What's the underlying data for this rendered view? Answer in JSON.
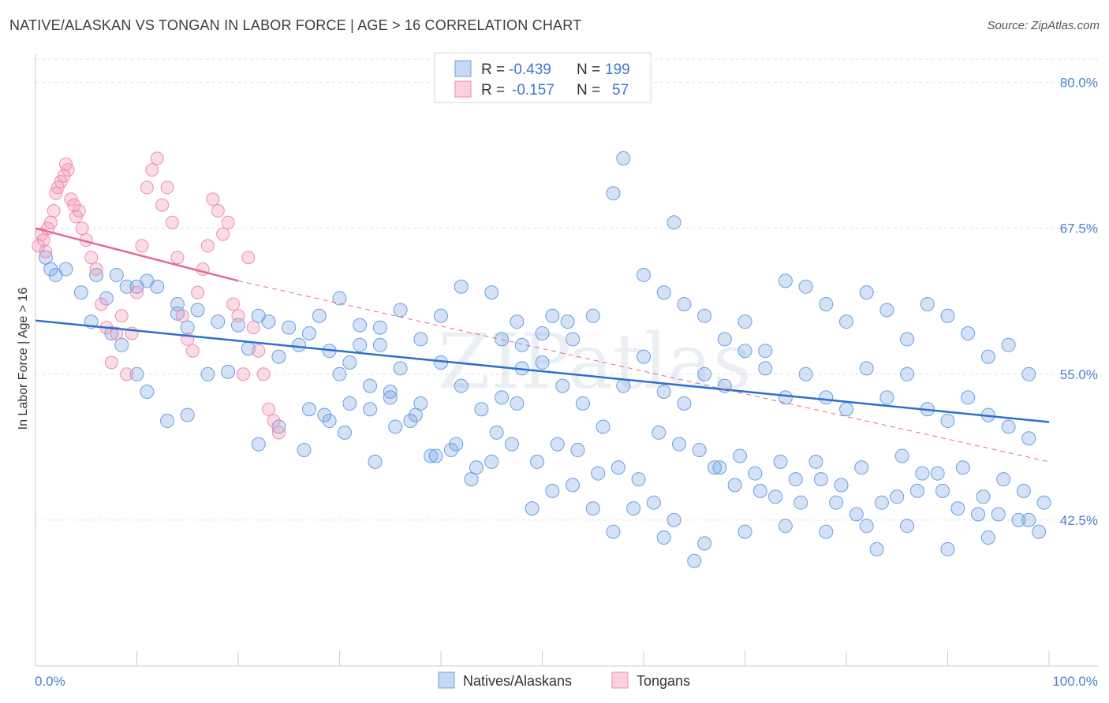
{
  "title": "NATIVE/ALASKAN VS TONGAN IN LABOR FORCE | AGE > 16 CORRELATION CHART",
  "source": "Source: ZipAtlas.com",
  "watermark": "ZIPatlas",
  "chart_data": {
    "type": "scatter",
    "ylabel": "In Labor Force | Age > 16",
    "xlim": [
      0,
      100
    ],
    "ylim": [
      30,
      82
    ],
    "x_tick_labels": [
      "0.0%",
      "100.0%"
    ],
    "y_ticks": [
      42.5,
      55.0,
      67.5,
      80.0
    ],
    "y_tick_labels": [
      "42.5%",
      "55.0%",
      "67.5%",
      "80.0%"
    ],
    "grid": true,
    "colors": {
      "natives": "#6d9fe0",
      "tongans": "#f08cb0",
      "natives_line": "#2c6fd1",
      "tongans_line": "#e56a93"
    },
    "legend": {
      "rows": [
        {
          "r_label": "R =",
          "r_value": "-0.439",
          "n_label": "N =",
          "n_value": "199"
        },
        {
          "r_label": "R =",
          "r_value": "-0.157",
          "n_label": "N =",
          "n_value": "57"
        }
      ],
      "bottom": [
        "Natives/Alaskans",
        "Tongans"
      ]
    },
    "series": [
      {
        "name": "Natives/Alaskans",
        "trend": {
          "x": [
            0,
            100
          ],
          "y": [
            59.6,
            50.9
          ]
        },
        "points": [
          [
            1,
            65
          ],
          [
            1.5,
            64
          ],
          [
            3,
            64
          ],
          [
            2,
            63.5
          ],
          [
            4.5,
            62
          ],
          [
            6,
            63.5
          ],
          [
            8,
            63.5
          ],
          [
            10,
            62.5
          ],
          [
            7,
            61.5
          ],
          [
            9,
            62.5
          ],
          [
            11,
            63
          ],
          [
            12,
            62.5
          ],
          [
            14,
            61
          ],
          [
            16,
            60.5
          ],
          [
            14,
            60.2
          ],
          [
            15,
            59
          ],
          [
            18,
            59.5
          ],
          [
            20,
            59.2
          ],
          [
            22,
            60
          ],
          [
            23,
            59.5
          ],
          [
            25,
            59
          ],
          [
            27,
            58.5
          ],
          [
            29,
            57
          ],
          [
            32,
            59.2
          ],
          [
            34,
            57.5
          ],
          [
            31,
            56
          ],
          [
            30,
            55
          ],
          [
            33,
            54
          ],
          [
            35,
            53.5
          ],
          [
            38,
            52.5
          ],
          [
            36,
            55.5
          ],
          [
            40,
            56
          ],
          [
            42,
            54
          ],
          [
            44,
            52
          ],
          [
            46,
            53
          ],
          [
            48,
            55.5
          ],
          [
            50,
            56
          ],
          [
            52,
            54
          ],
          [
            54,
            52.5
          ],
          [
            56,
            50.5
          ],
          [
            58,
            54
          ],
          [
            60,
            56.5
          ],
          [
            62,
            53.5
          ],
          [
            64,
            52.5
          ],
          [
            66,
            55
          ],
          [
            68,
            54
          ],
          [
            70,
            57
          ],
          [
            72,
            55.5
          ],
          [
            74,
            53
          ],
          [
            76,
            55
          ],
          [
            78,
            53
          ],
          [
            80,
            52
          ],
          [
            82,
            55.5
          ],
          [
            84,
            53
          ],
          [
            86,
            55
          ],
          [
            88,
            52
          ],
          [
            90,
            51
          ],
          [
            92,
            53
          ],
          [
            94,
            51.5
          ],
          [
            96,
            50.5
          ],
          [
            98,
            49.5
          ],
          [
            26,
            57.5
          ],
          [
            24,
            56.5
          ],
          [
            21,
            57.2
          ],
          [
            19,
            55.2
          ],
          [
            17,
            55
          ],
          [
            15,
            51.5
          ],
          [
            13,
            51
          ],
          [
            11,
            53.5
          ],
          [
            10,
            55
          ],
          [
            8.5,
            57.5
          ],
          [
            7.5,
            58.5
          ],
          [
            5.5,
            59.5
          ],
          [
            26.5,
            48.5
          ],
          [
            28.5,
            51.5
          ],
          [
            30.5,
            50
          ],
          [
            33.5,
            47.5
          ],
          [
            35.5,
            50.5
          ],
          [
            37.5,
            51.5
          ],
          [
            39.5,
            48
          ],
          [
            41.5,
            49
          ],
          [
            43.5,
            47
          ],
          [
            45.5,
            50
          ],
          [
            47.5,
            52.5
          ],
          [
            49.5,
            47.5
          ],
          [
            51.5,
            49
          ],
          [
            53.5,
            48.5
          ],
          [
            55.5,
            46.5
          ],
          [
            57.5,
            47
          ],
          [
            59.5,
            46
          ],
          [
            61.5,
            50
          ],
          [
            63.5,
            49
          ],
          [
            65.5,
            48.5
          ],
          [
            67.5,
            47
          ],
          [
            69.5,
            48
          ],
          [
            71.5,
            45
          ],
          [
            73.5,
            47.5
          ],
          [
            75.5,
            44
          ],
          [
            77.5,
            46
          ],
          [
            79.5,
            45.5
          ],
          [
            81.5,
            47
          ],
          [
            83.5,
            44
          ],
          [
            85.5,
            48
          ],
          [
            87.5,
            46.5
          ],
          [
            89.5,
            45
          ],
          [
            91.5,
            47
          ],
          [
            93.5,
            44.5
          ],
          [
            95.5,
            46
          ],
          [
            97.5,
            45
          ],
          [
            99.5,
            44
          ],
          [
            60,
            63.5
          ],
          [
            62,
            62
          ],
          [
            64,
            61
          ],
          [
            66,
            60
          ],
          [
            68,
            58
          ],
          [
            70,
            59.5
          ],
          [
            72,
            57
          ],
          [
            74,
            63
          ],
          [
            76,
            62.5
          ],
          [
            78,
            61
          ],
          [
            80,
            59.5
          ],
          [
            82,
            62
          ],
          [
            84,
            60.5
          ],
          [
            86,
            58
          ],
          [
            88,
            61
          ],
          [
            90,
            60
          ],
          [
            92,
            58.5
          ],
          [
            94,
            56.5
          ],
          [
            96,
            57.5
          ],
          [
            98,
            55
          ],
          [
            57,
            70.5
          ],
          [
            58,
            73.5
          ],
          [
            63,
            68
          ],
          [
            55,
            60
          ],
          [
            52.5,
            59.5
          ],
          [
            50,
            58.5
          ],
          [
            47.5,
            59.5
          ],
          [
            45,
            62
          ],
          [
            42,
            62.5
          ],
          [
            40,
            60
          ],
          [
            38,
            58
          ],
          [
            36,
            60.5
          ],
          [
            34,
            59
          ],
          [
            32,
            57.5
          ],
          [
            30,
            61.5
          ],
          [
            28,
            60
          ],
          [
            46,
            58
          ],
          [
            48,
            57.5
          ],
          [
            51,
            60
          ],
          [
            53,
            58
          ],
          [
            22,
            49
          ],
          [
            24,
            50.5
          ],
          [
            27,
            52
          ],
          [
            29,
            51
          ],
          [
            31,
            52.5
          ],
          [
            33,
            52
          ],
          [
            35,
            53
          ],
          [
            37,
            51
          ],
          [
            39,
            48
          ],
          [
            41,
            48.5
          ],
          [
            43,
            46
          ],
          [
            45,
            47.5
          ],
          [
            47,
            49
          ],
          [
            49,
            43.5
          ],
          [
            51,
            45
          ],
          [
            53,
            45.5
          ],
          [
            55,
            43.5
          ],
          [
            57,
            41.5
          ],
          [
            59,
            43.5
          ],
          [
            61,
            44
          ],
          [
            63,
            42.5
          ],
          [
            65,
            39
          ],
          [
            67,
            47
          ],
          [
            69,
            45.5
          ],
          [
            71,
            46.5
          ],
          [
            73,
            44.5
          ],
          [
            75,
            46
          ],
          [
            77,
            47.5
          ],
          [
            79,
            44
          ],
          [
            81,
            43
          ],
          [
            83,
            40
          ],
          [
            85,
            44.5
          ],
          [
            87,
            45
          ],
          [
            89,
            46.5
          ],
          [
            91,
            43.5
          ],
          [
            93,
            43
          ],
          [
            95,
            43
          ],
          [
            97,
            42.5
          ],
          [
            99,
            41.5
          ],
          [
            62,
            41
          ],
          [
            66,
            40.5
          ],
          [
            70,
            41.5
          ],
          [
            74,
            42
          ],
          [
            78,
            41.5
          ],
          [
            82,
            42
          ],
          [
            86,
            42
          ],
          [
            90,
            40
          ],
          [
            94,
            41
          ],
          [
            98,
            42.5
          ]
        ]
      },
      {
        "name": "Tongans",
        "trend": {
          "x": [
            0,
            20
          ],
          "y": [
            67.5,
            63.0
          ]
        },
        "trend_dashed": {
          "x": [
            20,
            100
          ],
          "y": [
            63.0,
            47.5
          ]
        },
        "points": [
          [
            0.3,
            66
          ],
          [
            0.6,
            67
          ],
          [
            0.8,
            66.5
          ],
          [
            1,
            65.5
          ],
          [
            1.2,
            67.5
          ],
          [
            1.5,
            68
          ],
          [
            1.8,
            69
          ],
          [
            2,
            70.5
          ],
          [
            2.2,
            71
          ],
          [
            2.5,
            71.5
          ],
          [
            2.8,
            72
          ],
          [
            3,
            73
          ],
          [
            3.2,
            72.5
          ],
          [
            3.5,
            70
          ],
          [
            3.8,
            69.5
          ],
          [
            4,
            68.5
          ],
          [
            4.3,
            69
          ],
          [
            4.6,
            67.5
          ],
          [
            5,
            66.5
          ],
          [
            5.5,
            65
          ],
          [
            6,
            64
          ],
          [
            6.5,
            61
          ],
          [
            7,
            59
          ],
          [
            7.5,
            56
          ],
          [
            8,
            58.5
          ],
          [
            8.5,
            60
          ],
          [
            9,
            55
          ],
          [
            9.5,
            58.5
          ],
          [
            10,
            62
          ],
          [
            10.5,
            66
          ],
          [
            11,
            71
          ],
          [
            11.5,
            72.5
          ],
          [
            12,
            73.5
          ],
          [
            12.5,
            69.5
          ],
          [
            13,
            71
          ],
          [
            13.5,
            68
          ],
          [
            14,
            65
          ],
          [
            14.5,
            60
          ],
          [
            15,
            58
          ],
          [
            15.5,
            57
          ],
          [
            16,
            62
          ],
          [
            16.5,
            64
          ],
          [
            17,
            66
          ],
          [
            17.5,
            70
          ],
          [
            18,
            69
          ],
          [
            18.5,
            67
          ],
          [
            19,
            68
          ],
          [
            19.5,
            61
          ],
          [
            20,
            60
          ],
          [
            20.5,
            55
          ],
          [
            21,
            65
          ],
          [
            21.5,
            59
          ],
          [
            22,
            57
          ],
          [
            22.5,
            55
          ],
          [
            23,
            52
          ],
          [
            23.5,
            51
          ],
          [
            24,
            50
          ]
        ]
      }
    ]
  }
}
